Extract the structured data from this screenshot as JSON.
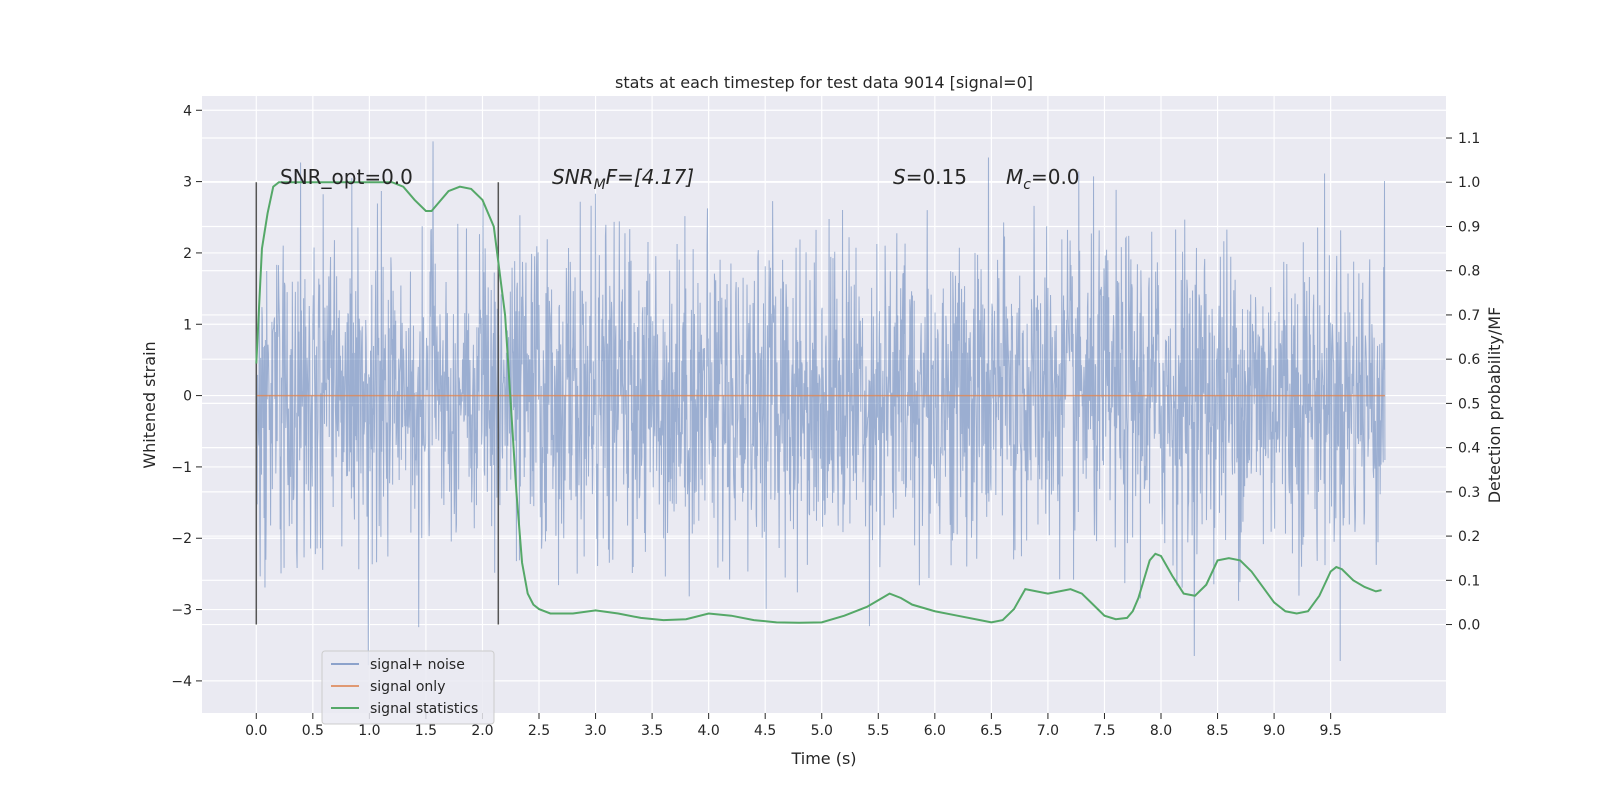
{
  "chart_data": {
    "type": "line",
    "title": "stats at each timestep for test data 9014 [signal=0]",
    "xlabel": "Time (s)",
    "ylabel": "Whitened strain",
    "y2label": "Detection probability/MF",
    "xlim": [
      -0.48,
      10.52
    ],
    "ylim": [
      -4.45,
      4.2
    ],
    "y2lim": [
      -0.2,
      1.195
    ],
    "xticks": [
      "0.0",
      "0.5",
      "1.0",
      "1.5",
      "2.0",
      "2.5",
      "3.0",
      "3.5",
      "4.0",
      "4.5",
      "5.0",
      "5.5",
      "6.0",
      "6.5",
      "7.0",
      "7.5",
      "8.0",
      "8.5",
      "9.0",
      "9.5"
    ],
    "yticks": [
      4,
      3,
      2,
      1,
      0,
      -1,
      -2,
      -3,
      -4
    ],
    "y2ticks": [
      "1.1",
      "1.0",
      "0.9",
      "0.8",
      "0.7",
      "0.6",
      "0.5",
      "0.4",
      "0.3",
      "0.2",
      "0.1",
      "0.0"
    ],
    "grid": true,
    "legend_position": "lower-left",
    "annotations": {
      "snr_opt": "SNR_opt=0.0",
      "snr_mf_base": "SNR",
      "snr_mf_sub": "M",
      "snr_mf_rest": "F=[4.17]",
      "s_italic": "S",
      "s_value": "=0.15",
      "mc_base": "M",
      "mc_sub": "c",
      "mc_value": "=0.0"
    },
    "vlines_x": [
      0.0,
      2.14
    ],
    "series": [
      {
        "name": "signal+ noise",
        "color": "#4c72b0",
        "description_range": [
          0.0,
          9.98
        ],
        "typical_amplitude": 1.1,
        "extreme_min": -4.0,
        "extreme_max": 3.83
      },
      {
        "name": "signal only",
        "color": "#dd8452",
        "x": [
          0.0,
          9.98
        ],
        "y": [
          0.0,
          0.0
        ]
      },
      {
        "name": "signal statistics",
        "color": "#55a868",
        "axis": "right",
        "x": [
          0.0,
          0.05,
          0.1,
          0.15,
          0.2,
          0.3,
          0.5,
          0.8,
          1.0,
          1.2,
          1.3,
          1.4,
          1.5,
          1.55,
          1.6,
          1.7,
          1.8,
          1.9,
          2.0,
          2.1,
          2.2,
          2.25,
          2.3,
          2.35,
          2.4,
          2.45,
          2.5,
          2.6,
          2.8,
          3.0,
          3.2,
          3.4,
          3.6,
          3.8,
          4.0,
          4.2,
          4.4,
          4.6,
          4.8,
          5.0,
          5.2,
          5.4,
          5.5,
          5.6,
          5.7,
          5.8,
          6.0,
          6.2,
          6.4,
          6.5,
          6.6,
          6.7,
          6.8,
          6.9,
          7.0,
          7.1,
          7.2,
          7.3,
          7.4,
          7.5,
          7.6,
          7.7,
          7.75,
          7.8,
          7.9,
          7.95,
          8.0,
          8.1,
          8.2,
          8.3,
          8.4,
          8.5,
          8.6,
          8.7,
          8.8,
          8.9,
          9.0,
          9.1,
          9.2,
          9.3,
          9.4,
          9.5,
          9.55,
          9.6,
          9.7,
          9.8,
          9.9,
          9.95
        ],
        "y": [
          0.59,
          0.85,
          0.93,
          0.99,
          1.0,
          1.0,
          1.0,
          1.0,
          1.0,
          1.0,
          0.99,
          0.96,
          0.935,
          0.935,
          0.95,
          0.98,
          0.99,
          0.985,
          0.96,
          0.9,
          0.7,
          0.5,
          0.3,
          0.14,
          0.07,
          0.045,
          0.035,
          0.025,
          0.025,
          0.032,
          0.025,
          0.015,
          0.01,
          0.012,
          0.025,
          0.02,
          0.01,
          0.005,
          0.004,
          0.005,
          0.02,
          0.04,
          0.055,
          0.07,
          0.06,
          0.045,
          0.03,
          0.02,
          0.01,
          0.005,
          0.01,
          0.035,
          0.08,
          0.075,
          0.07,
          0.075,
          0.08,
          0.07,
          0.045,
          0.02,
          0.012,
          0.015,
          0.03,
          0.06,
          0.145,
          0.16,
          0.155,
          0.11,
          0.07,
          0.065,
          0.09,
          0.145,
          0.15,
          0.145,
          0.12,
          0.085,
          0.05,
          0.03,
          0.025,
          0.03,
          0.065,
          0.12,
          0.13,
          0.125,
          0.1,
          0.085,
          0.075,
          0.078
        ]
      }
    ]
  }
}
